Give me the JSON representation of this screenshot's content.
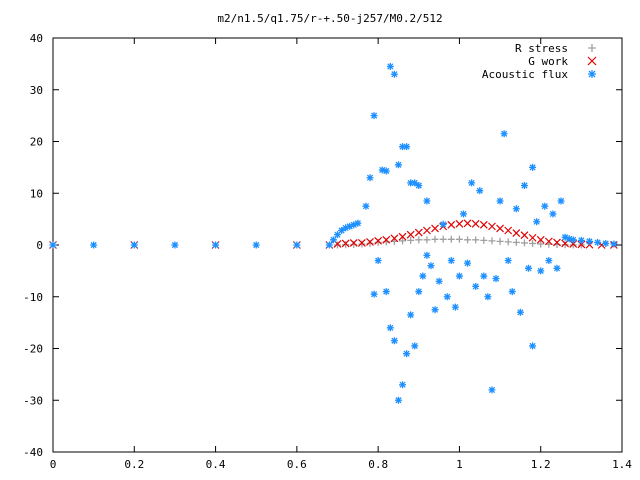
{
  "chart_data": {
    "type": "scatter",
    "title": "m2/n1.5/q1.75/r-+.50-j257/M0.2/512",
    "xlabel": "",
    "ylabel": "",
    "xlim": [
      0,
      1.4
    ],
    "ylim": [
      -40,
      40
    ],
    "xticks": [
      "0",
      "0.2",
      "0.4",
      "0.6",
      "0.8",
      "1",
      "1.2",
      "1.4"
    ],
    "yticks": [
      "40",
      "30",
      "20",
      "10",
      "0",
      "-10",
      "-20",
      "-30",
      "-40"
    ],
    "grid": false,
    "legend_position": "top-right",
    "series": [
      {
        "name": "R stress",
        "marker": "+",
        "color": "#a0a0a0",
        "points": [
          [
            0.7,
            0.0
          ],
          [
            0.72,
            0.05
          ],
          [
            0.74,
            0.1
          ],
          [
            0.76,
            0.2
          ],
          [
            0.78,
            0.3
          ],
          [
            0.8,
            0.5
          ],
          [
            0.82,
            0.6
          ],
          [
            0.84,
            0.7
          ],
          [
            0.86,
            0.8
          ],
          [
            0.88,
            0.9
          ],
          [
            0.9,
            1.0
          ],
          [
            0.92,
            1.0
          ],
          [
            0.94,
            1.1
          ],
          [
            0.96,
            1.1
          ],
          [
            0.98,
            1.1
          ],
          [
            1.0,
            1.1
          ],
          [
            1.02,
            1.0
          ],
          [
            1.04,
            1.0
          ],
          [
            1.06,
            0.9
          ],
          [
            1.08,
            0.8
          ],
          [
            1.1,
            0.7
          ],
          [
            1.12,
            0.6
          ],
          [
            1.14,
            0.5
          ],
          [
            1.16,
            0.4
          ],
          [
            1.18,
            0.3
          ],
          [
            1.2,
            0.2
          ],
          [
            1.22,
            0.15
          ],
          [
            1.24,
            0.1
          ],
          [
            1.26,
            0.05
          ],
          [
            1.28,
            0.02
          ],
          [
            1.3,
            0.0
          ]
        ]
      },
      {
        "name": "G work",
        "marker": "x",
        "color": "#e00000",
        "points": [
          [
            0.0,
            0.0
          ],
          [
            0.2,
            0.0
          ],
          [
            0.4,
            0.0
          ],
          [
            0.6,
            0.0
          ],
          [
            0.68,
            0.0
          ],
          [
            0.7,
            0.2
          ],
          [
            0.72,
            0.3
          ],
          [
            0.74,
            0.4
          ],
          [
            0.76,
            0.4
          ],
          [
            0.78,
            0.6
          ],
          [
            0.8,
            0.8
          ],
          [
            0.82,
            1.0
          ],
          [
            0.84,
            1.3
          ],
          [
            0.86,
            1.6
          ],
          [
            0.88,
            2.0
          ],
          [
            0.9,
            2.4
          ],
          [
            0.92,
            2.8
          ],
          [
            0.94,
            3.2
          ],
          [
            0.96,
            3.6
          ],
          [
            0.98,
            3.9
          ],
          [
            1.0,
            4.1
          ],
          [
            1.02,
            4.2
          ],
          [
            1.04,
            4.1
          ],
          [
            1.06,
            3.9
          ],
          [
            1.08,
            3.6
          ],
          [
            1.1,
            3.2
          ],
          [
            1.12,
            2.8
          ],
          [
            1.14,
            2.3
          ],
          [
            1.16,
            1.9
          ],
          [
            1.18,
            1.4
          ],
          [
            1.2,
            1.0
          ],
          [
            1.22,
            0.7
          ],
          [
            1.24,
            0.5
          ],
          [
            1.26,
            0.3
          ],
          [
            1.28,
            0.2
          ],
          [
            1.3,
            0.1
          ],
          [
            1.32,
            0.05
          ],
          [
            1.35,
            0.0
          ],
          [
            1.38,
            0.0
          ]
        ]
      },
      {
        "name": "Acoustic flux",
        "marker": "*",
        "color": "#1e90ff",
        "points": [
          [
            0.0,
            0.0
          ],
          [
            0.1,
            0.0
          ],
          [
            0.2,
            0.0
          ],
          [
            0.3,
            0.0
          ],
          [
            0.4,
            0.0
          ],
          [
            0.5,
            0.0
          ],
          [
            0.6,
            0.0
          ],
          [
            0.68,
            0.0
          ],
          [
            0.69,
            1.0
          ],
          [
            0.7,
            2.0
          ],
          [
            0.71,
            2.8
          ],
          [
            0.72,
            3.3
          ],
          [
            0.73,
            3.6
          ],
          [
            0.74,
            3.9
          ],
          [
            0.75,
            4.2
          ],
          [
            0.77,
            7.5
          ],
          [
            0.78,
            13.0
          ],
          [
            0.79,
            25.0
          ],
          [
            0.79,
            -9.5
          ],
          [
            0.8,
            -3.0
          ],
          [
            0.81,
            14.5
          ],
          [
            0.82,
            14.3
          ],
          [
            0.82,
            -9.0
          ],
          [
            0.83,
            -16.0
          ],
          [
            0.83,
            34.5
          ],
          [
            0.84,
            33.0
          ],
          [
            0.84,
            -18.5
          ],
          [
            0.85,
            -30.0
          ],
          [
            0.85,
            15.5
          ],
          [
            0.86,
            19.0
          ],
          [
            0.86,
            -27.0
          ],
          [
            0.87,
            19.0
          ],
          [
            0.87,
            -21.0
          ],
          [
            0.88,
            12.0
          ],
          [
            0.88,
            -13.5
          ],
          [
            0.89,
            -19.5
          ],
          [
            0.89,
            12.0
          ],
          [
            0.9,
            -9.0
          ],
          [
            0.9,
            11.5
          ],
          [
            0.91,
            -6.0
          ],
          [
            0.92,
            -2.0
          ],
          [
            0.92,
            8.5
          ],
          [
            0.93,
            -4.0
          ],
          [
            0.94,
            -12.5
          ],
          [
            0.95,
            -7.0
          ],
          [
            0.96,
            4.0
          ],
          [
            0.97,
            -10.0
          ],
          [
            0.98,
            -3.0
          ],
          [
            0.99,
            -12.0
          ],
          [
            1.0,
            -6.0
          ],
          [
            1.01,
            6.0
          ],
          [
            1.02,
            -3.5
          ],
          [
            1.03,
            12.0
          ],
          [
            1.04,
            -8.0
          ],
          [
            1.05,
            10.5
          ],
          [
            1.06,
            -6.0
          ],
          [
            1.07,
            -10.0
          ],
          [
            1.08,
            -28.0
          ],
          [
            1.09,
            -6.5
          ],
          [
            1.1,
            8.5
          ],
          [
            1.11,
            21.5
          ],
          [
            1.12,
            -3.0
          ],
          [
            1.13,
            -9.0
          ],
          [
            1.14,
            7.0
          ],
          [
            1.15,
            -13.0
          ],
          [
            1.16,
            11.5
          ],
          [
            1.17,
            -4.5
          ],
          [
            1.18,
            15.0
          ],
          [
            1.18,
            -19.5
          ],
          [
            1.19,
            4.5
          ],
          [
            1.2,
            -5.0
          ],
          [
            1.21,
            7.5
          ],
          [
            1.22,
            -3.0
          ],
          [
            1.23,
            6.0
          ],
          [
            1.24,
            -4.5
          ],
          [
            1.25,
            8.5
          ],
          [
            1.26,
            1.5
          ],
          [
            1.27,
            1.2
          ],
          [
            1.28,
            1.0
          ],
          [
            1.3,
            0.9
          ],
          [
            1.32,
            0.7
          ],
          [
            1.34,
            0.5
          ],
          [
            1.36,
            0.3
          ],
          [
            1.38,
            0.2
          ]
        ]
      }
    ]
  }
}
